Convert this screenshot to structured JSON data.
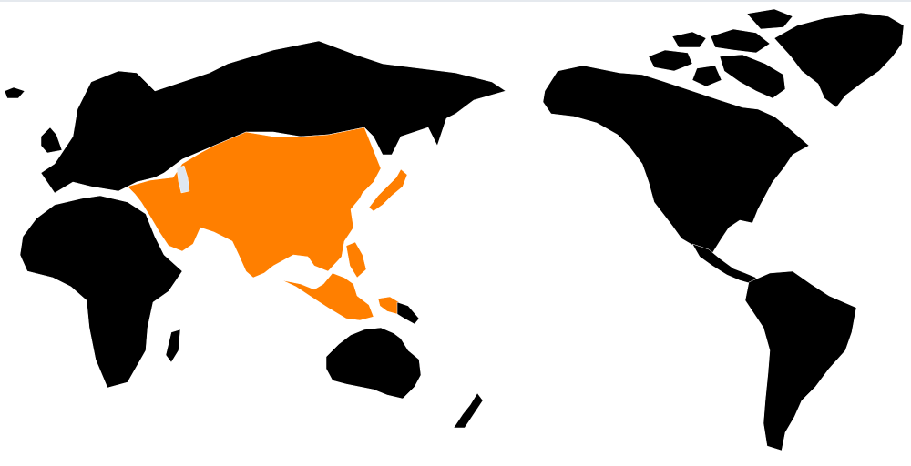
{
  "map": {
    "colors": {
      "land": "#000000",
      "highlight": "#ff7f00",
      "lake": "#dfe7f0",
      "background": "#ffffff"
    },
    "regions": [
      {
        "id": "europe-russia",
        "highlighted": false
      },
      {
        "id": "iceland",
        "highlighted": false
      },
      {
        "id": "uk",
        "highlighted": false
      },
      {
        "id": "africa",
        "highlighted": false
      },
      {
        "id": "madagascar",
        "highlighted": false
      },
      {
        "id": "asia",
        "highlighted": true
      },
      {
        "id": "japan",
        "highlighted": true
      },
      {
        "id": "philippines",
        "highlighted": true
      },
      {
        "id": "indonesia",
        "highlighted": true
      },
      {
        "id": "new-guinea-west",
        "highlighted": true
      },
      {
        "id": "new-guinea-east",
        "highlighted": false
      },
      {
        "id": "australia",
        "highlighted": false
      },
      {
        "id": "new-zealand",
        "highlighted": false
      },
      {
        "id": "north-america",
        "highlighted": false
      },
      {
        "id": "central-america",
        "highlighted": false
      },
      {
        "id": "south-america",
        "highlighted": false
      },
      {
        "id": "greenland",
        "highlighted": false
      },
      {
        "id": "arctic-islands",
        "highlighted": false
      },
      {
        "id": "caspian-sea",
        "highlighted": false
      }
    ]
  }
}
